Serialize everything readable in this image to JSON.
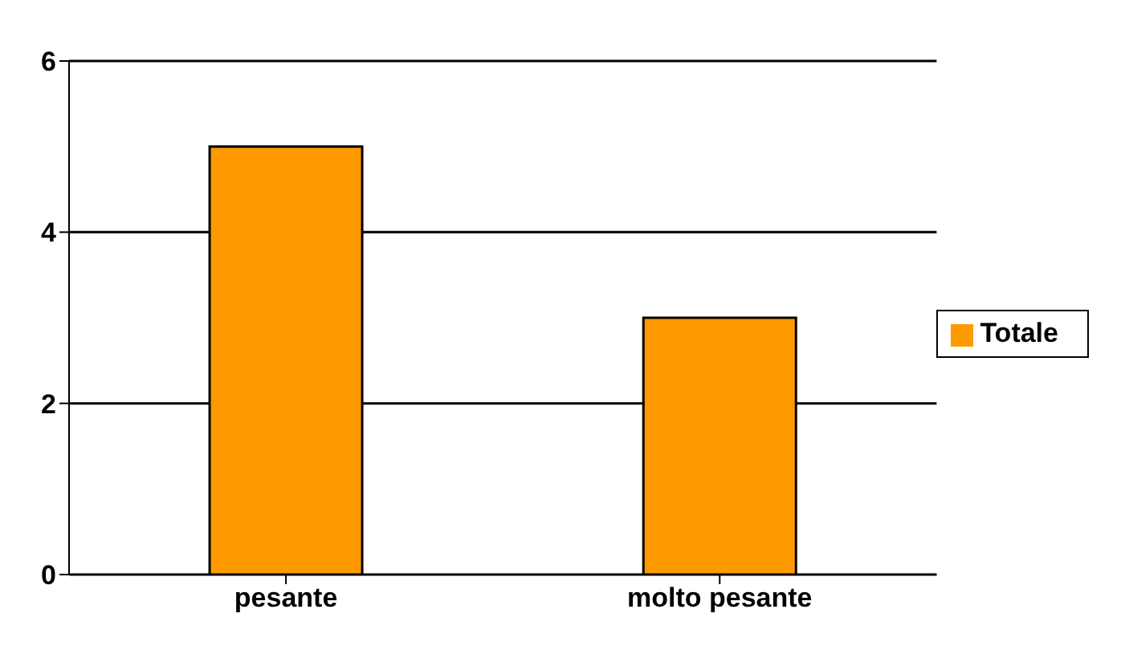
{
  "chart_data": {
    "type": "bar",
    "categories": [
      "pesante",
      "molto pesante"
    ],
    "series": [
      {
        "name": "Totale",
        "color": "#ff9900",
        "values": [
          5,
          3
        ]
      }
    ],
    "ylim": [
      0,
      6
    ],
    "yticks": [
      0,
      2,
      4,
      6
    ],
    "grid": "y",
    "legend": "right"
  }
}
